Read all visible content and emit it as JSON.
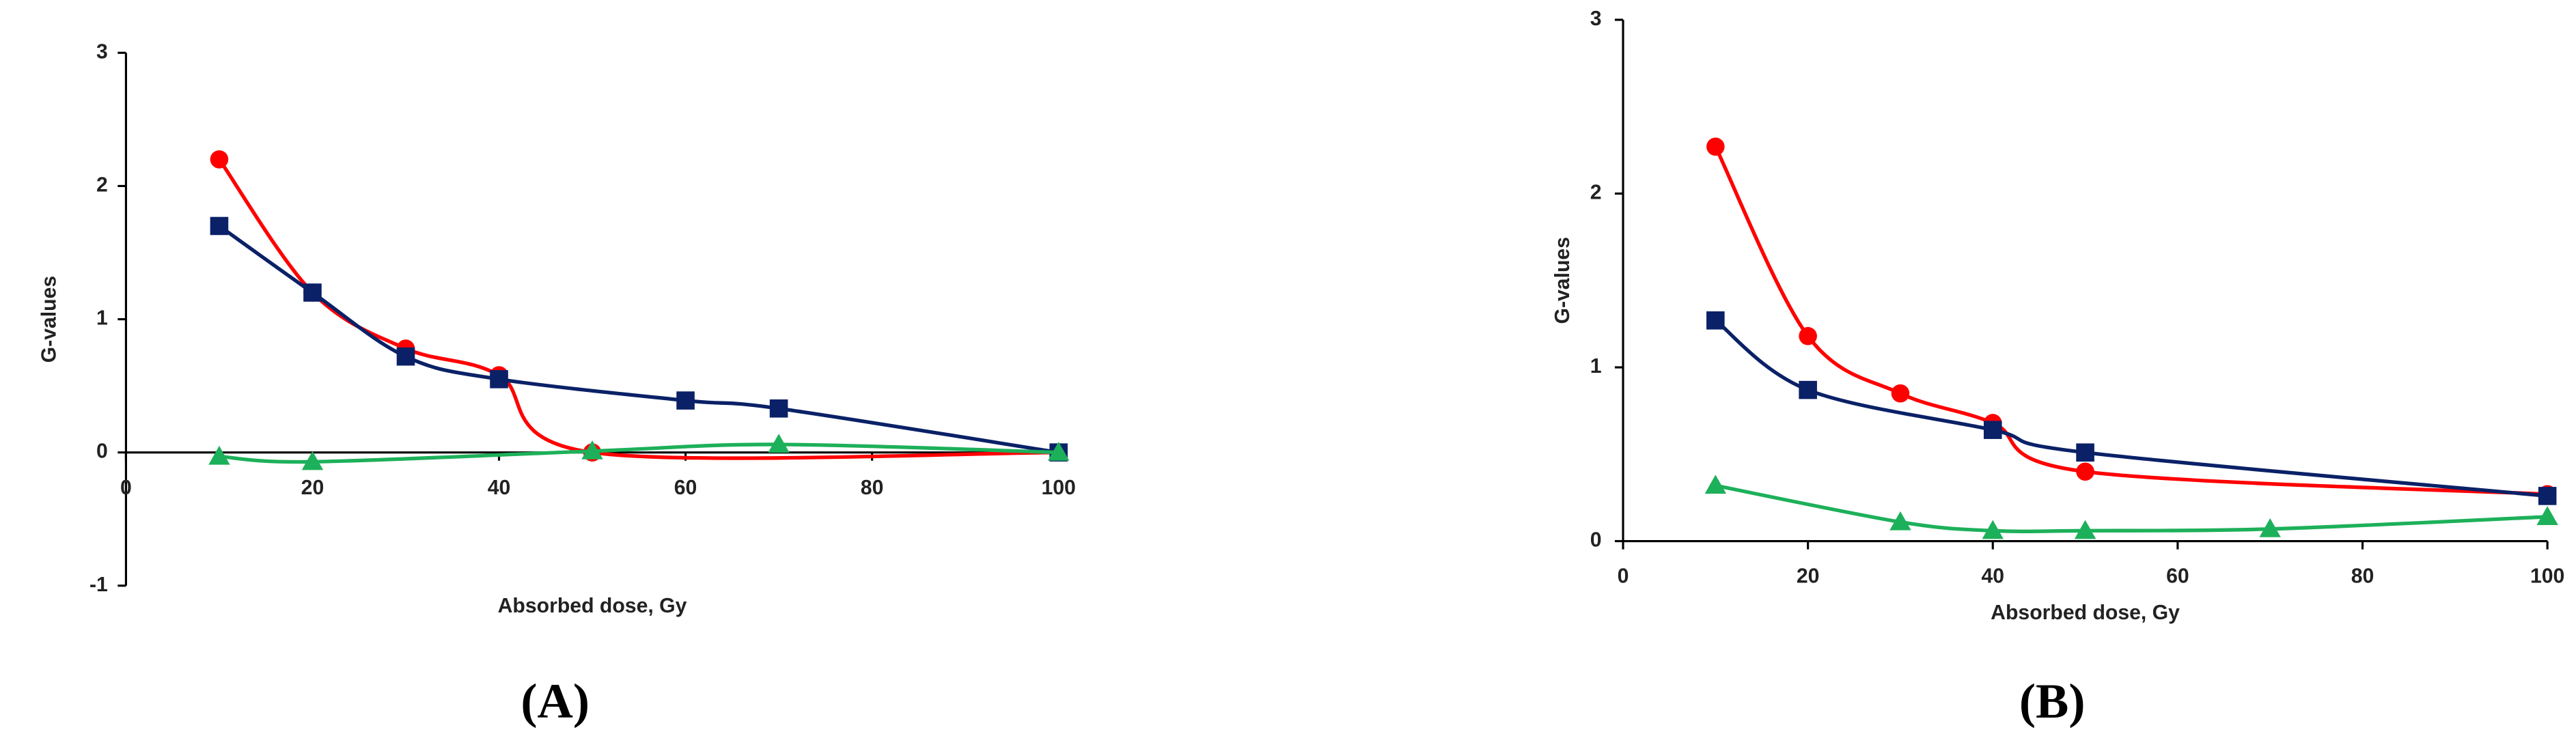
{
  "chart_data": [
    {
      "type": "line",
      "title": "(A)",
      "xlabel": "Absorbed dose, Gy",
      "ylabel": "G-values",
      "xlim": [
        0,
        100
      ],
      "ylim": [
        -1,
        3
      ],
      "xticks": [
        0,
        20,
        40,
        60,
        80,
        100
      ],
      "yticks": [
        3,
        2,
        1,
        0,
        -1
      ],
      "series": [
        {
          "color": "#ff0000",
          "marker": "circle",
          "x": [
            10,
            20,
            30,
            40,
            50,
            100
          ],
          "values": [
            2.2,
            1.2,
            0.78,
            0.58,
            0,
            0
          ]
        },
        {
          "color": "#0a2167",
          "marker": "square",
          "x": [
            10,
            20,
            30,
            40,
            60,
            70,
            100
          ],
          "values": [
            1.7,
            1.2,
            0.72,
            0.55,
            0.39,
            0.33,
            0
          ]
        },
        {
          "color": "#1db05a",
          "marker": "triangle",
          "x": [
            10,
            20,
            50,
            70,
            100
          ],
          "values": [
            -0.03,
            -0.07,
            0.01,
            0.06,
            0
          ]
        }
      ]
    },
    {
      "type": "line",
      "title": "(B)",
      "xlabel": "Absorbed dose, Gy",
      "ylabel": "G-values",
      "xlim": [
        0,
        100
      ],
      "ylim": [
        0,
        3
      ],
      "xticks": [
        0,
        20,
        40,
        60,
        80,
        100
      ],
      "yticks": [
        3,
        2,
        1,
        0
      ],
      "series": [
        {
          "color": "#ff0000",
          "marker": "circle",
          "x": [
            10,
            20,
            30,
            40,
            50,
            100
          ],
          "values": [
            2.27,
            1.18,
            0.85,
            0.68,
            0.4,
            0.27
          ]
        },
        {
          "color": "#0a2167",
          "marker": "square",
          "x": [
            10,
            20,
            40,
            50,
            100
          ],
          "values": [
            1.27,
            0.87,
            0.64,
            0.51,
            0.26
          ]
        },
        {
          "color": "#1db05a",
          "marker": "triangle",
          "x": [
            10,
            30,
            40,
            50,
            70,
            100
          ],
          "values": [
            0.32,
            0.11,
            0.06,
            0.06,
            0.07,
            0.14
          ]
        }
      ]
    }
  ]
}
